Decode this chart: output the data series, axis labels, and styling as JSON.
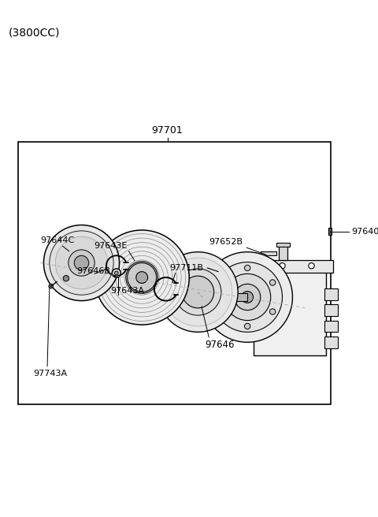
{
  "title": "(3800CC)",
  "background_color": "#ffffff",
  "lc": "#000000",
  "label_97701": "97701",
  "label_97640": "97640",
  "label_97652B": "97652B",
  "label_97643E": "97643E",
  "label_97711B": "97711B",
  "label_97646": "97646",
  "label_97644C": "97644C",
  "label_97646B": "97646B",
  "label_97643A": "97643A",
  "label_97743A": "97743A"
}
